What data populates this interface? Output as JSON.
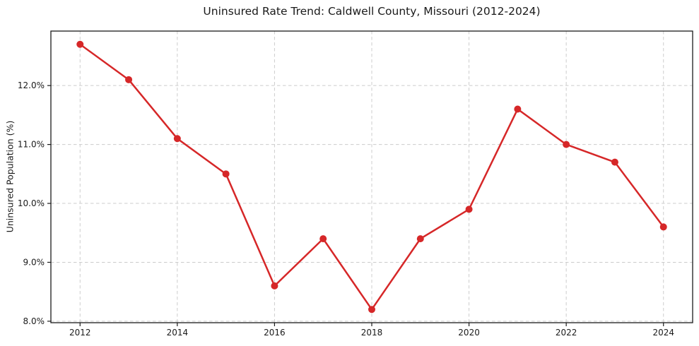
{
  "chart_data": {
    "type": "line",
    "title": "Uninsured Rate Trend: Caldwell County, Missouri (2012-2024)",
    "xlabel": "",
    "ylabel": "Uninsured Population (%)",
    "x": [
      2012,
      2013,
      2014,
      2015,
      2016,
      2017,
      2018,
      2019,
      2020,
      2021,
      2022,
      2023,
      2024
    ],
    "series": [
      {
        "name": "Uninsured Rate",
        "values": [
          12.7,
          12.1,
          11.1,
          10.5,
          8.6,
          9.4,
          8.2,
          9.4,
          9.9,
          11.6,
          11.0,
          10.7,
          9.6
        ]
      }
    ],
    "xlim": [
      2011.4,
      2024.6
    ],
    "ylim": [
      7.975,
      12.925
    ],
    "x_ticks": [
      2012,
      2014,
      2016,
      2018,
      2020,
      2022,
      2024
    ],
    "y_ticks": [
      8.0,
      9.0,
      10.0,
      11.0,
      12.0
    ],
    "y_tick_suffix": "%",
    "grid": true,
    "grid_style": "dashed",
    "legend": false,
    "legend_position": "none",
    "colors": {
      "line": "#d62728",
      "marker": "#d62728",
      "grid": "#cccccc",
      "spine": "#1a1a1a",
      "text": "#1a1a1a",
      "background": "#ffffff"
    }
  }
}
